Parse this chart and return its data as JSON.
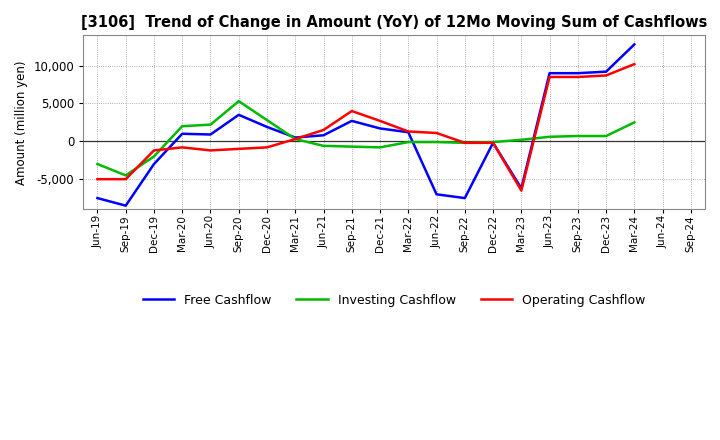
{
  "title": "[3106]  Trend of Change in Amount (YoY) of 12Mo Moving Sum of Cashflows",
  "ylabel": "Amount (million yen)",
  "xlabels": [
    "Jun-19",
    "Sep-19",
    "Dec-19",
    "Mar-20",
    "Jun-20",
    "Sep-20",
    "Dec-20",
    "Mar-21",
    "Jun-21",
    "Sep-21",
    "Dec-21",
    "Mar-22",
    "Jun-22",
    "Sep-22",
    "Dec-22",
    "Mar-23",
    "Jun-23",
    "Sep-23",
    "Dec-23",
    "Mar-24",
    "Jun-24",
    "Sep-24"
  ],
  "operating": [
    -5000,
    -5000,
    -1200,
    -800,
    -1200,
    -1000,
    -800,
    300,
    1500,
    4000,
    2700,
    1300,
    1100,
    -200,
    -200,
    -6500,
    8500,
    8500,
    8700,
    10200,
    null,
    null
  ],
  "investing": [
    -3000,
    -4500,
    -2000,
    2000,
    2200,
    5300,
    2800,
    300,
    -600,
    -700,
    -800,
    -100,
    -100,
    -200,
    -100,
    200,
    600,
    700,
    700,
    2500,
    null,
    null
  ],
  "free": [
    -7500,
    -8500,
    -3000,
    1000,
    900,
    3500,
    1900,
    500,
    800,
    2700,
    1700,
    1200,
    -7000,
    -7500,
    -200,
    -6200,
    9000,
    9000,
    9200,
    12800,
    null,
    null
  ],
  "ylim": [
    -9000,
    14000
  ],
  "yticks": [
    -5000,
    0,
    5000,
    10000
  ],
  "operating_color": "#ff0000",
  "investing_color": "#00bb00",
  "free_color": "#0000ff",
  "line_width": 1.8,
  "bg_color": "#ffffff",
  "grid_color": "#999999",
  "zero_line_color": "#333333"
}
